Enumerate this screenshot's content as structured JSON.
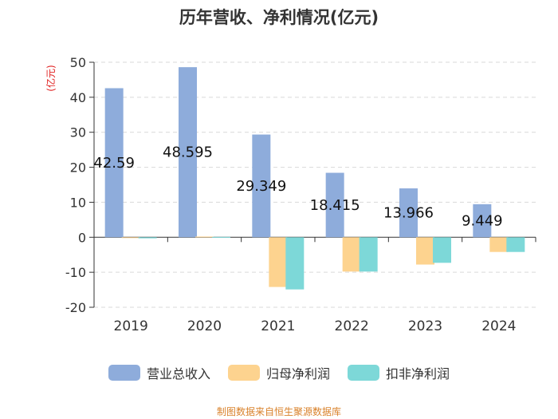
{
  "chart_data": {
    "type": "bar",
    "title": "历年营收、净利情况(亿元)",
    "ylabel": "(亿元)",
    "xlabel": "",
    "ylim": [
      -20,
      50
    ],
    "yticks": [
      50,
      40,
      30,
      20,
      10,
      0,
      -10,
      -20
    ],
    "grid": true,
    "legend_position": "bottom",
    "categories": [
      "2019",
      "2020",
      "2021",
      "2022",
      "2023",
      "2024"
    ],
    "series": [
      {
        "name": "营业总收入",
        "color": "#8eacdb",
        "values": [
          42.59,
          48.595,
          29.349,
          18.415,
          13.966,
          9.449
        ],
        "labels": [
          "42.59",
          "48.595",
          "29.349",
          "18.415",
          "13.966",
          "9.449"
        ]
      },
      {
        "name": "归母净利润",
        "color": "#fdd38f",
        "values": [
          -0.1,
          0.2,
          -14.2,
          -9.8,
          -7.8,
          -4.2
        ]
      },
      {
        "name": "扣非净利润",
        "color": "#7dd8d8",
        "values": [
          -0.3,
          0.1,
          -14.9,
          -9.8,
          -7.3,
          -4.2
        ]
      }
    ]
  },
  "footer": "制图数据来自恒生聚源数据库"
}
